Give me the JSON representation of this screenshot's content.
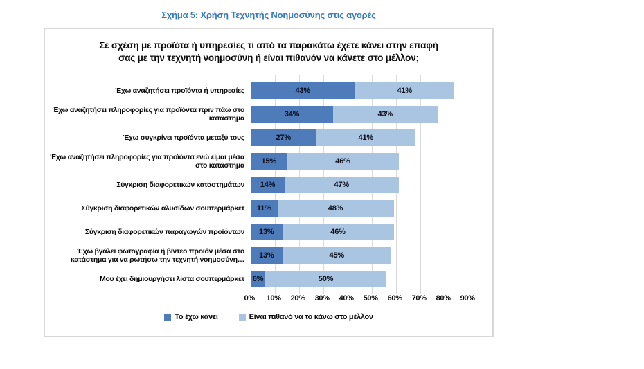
{
  "page": {
    "caption": "Σχήμα 5: Χρήση Τεχνητής Νοημοσύνης στις αγορές"
  },
  "colors": {
    "caption_blue": "#3579BE",
    "box_border": "#D8D8D8",
    "gridline": "#D9D9D9",
    "series_done": "#4E7CBB",
    "series_future": "#A9C5E2"
  },
  "chart": {
    "title_line1": "Σε σχέση με προϊότα ή υπηρεσίες τι από τα παρακάτω έχετε κάνει στην επαφή",
    "title_line2": "σας με την τεχνητή νοημοσύνη ή είναι πιθανόν να κάνετε στο μέλλον;"
  },
  "chart_data": {
    "type": "bar",
    "orientation": "horizontal",
    "stacked": true,
    "grid": true,
    "legend_position": "bottom",
    "categories": [
      "Έχω αναζητήσει προϊόντα ή υπηρεσίες",
      "Έχω αναζητήσει πληροφορίες για προϊόντα πριν πάω στο κατάστημα",
      "Έχω συγκρίνει προϊόντα μεταξύ τους",
      "Έχω αναζητήσει πληροφορίες για προϊόντα ενώ είμαι μέσα στο κατάστημα",
      "Σύγκριση διαφορετικών καταστημάτων",
      "Σύγκριση διαφορετικών αλυσίδων σουπερμάρκετ",
      "Σύγκριση διαφορετικών παραγωγών προϊόντων",
      "Έχω βγάλει φωτογραφία ή βίντεο προϊόν μέσα στο κατάστημα για να ρωτήσω την τεχνητή νοημοσύνη…",
      "Μου έχει δημιουργήσει λίστα σουπερμάρκετ"
    ],
    "series": [
      {
        "name": "Το έχω κάνει",
        "color": "#4E7CBB",
        "values": [
          43,
          34,
          27,
          15,
          14,
          11,
          13,
          13,
          6
        ]
      },
      {
        "name": "Είναι πιθανό να το κάνω στο μέλλον",
        "color": "#A9C5E2",
        "values": [
          41,
          43,
          41,
          46,
          47,
          48,
          46,
          45,
          50
        ]
      }
    ],
    "x_axis": {
      "min": 0,
      "max": 100,
      "step": 10,
      "ticks": [
        "0%",
        "10%",
        "20%",
        "30%",
        "40%",
        "50%",
        "60%",
        "70%",
        "80%",
        "90%"
      ]
    }
  }
}
